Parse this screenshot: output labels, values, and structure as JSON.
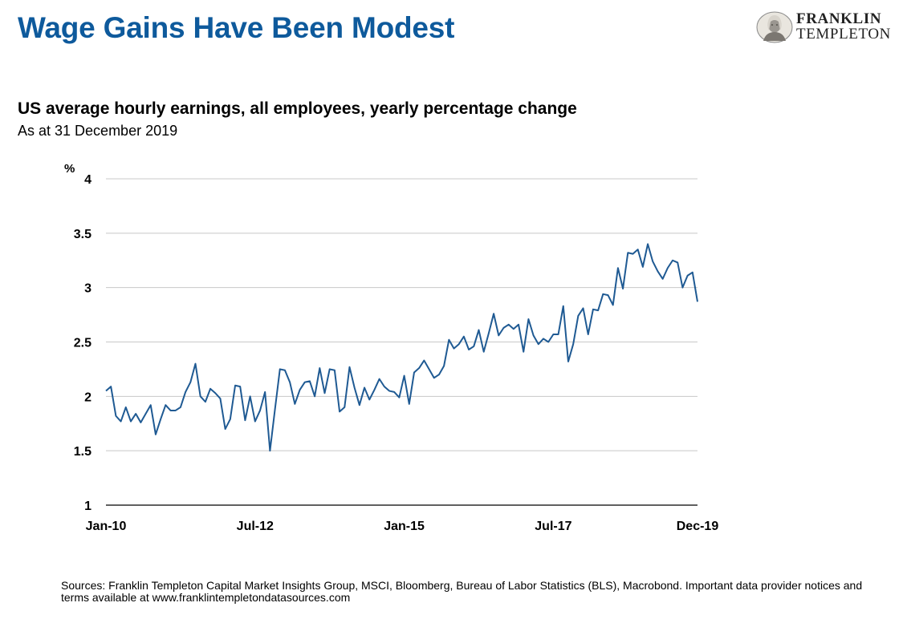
{
  "header": {
    "title": "Wage Gains Have Been Modest",
    "logo_line1": "FRANKLIN",
    "logo_line2": "TEMPLETON",
    "logo_icon": "franklin-portrait-icon"
  },
  "subtitle": "US average hourly earnings, all employees, yearly percentage change",
  "as_of": "As at 31 December 2019",
  "footer": {
    "sources": "Sources: Franklin Templeton Capital Market Insights Group, MSCI, Bloomberg, Bureau of Labor Statistics (BLS), Macrobond. Important data provider notices and terms available at www.franklintempletondatasources.com"
  },
  "chart_data": {
    "type": "line",
    "ylabel": "%",
    "ylim": [
      1,
      4
    ],
    "yticks": [
      "1",
      "1.5",
      "2",
      "2.5",
      "3",
      "3.5",
      "4"
    ],
    "xticks": [
      {
        "label": "Jan-10",
        "index": 0
      },
      {
        "label": "Jul-12",
        "index": 30
      },
      {
        "label": "Jan-15",
        "index": 60
      },
      {
        "label": "Jul-17",
        "index": 90
      },
      {
        "label": "Dec-19",
        "index": 119
      }
    ],
    "grid": true,
    "line_color": "#1f5a93",
    "series": [
      {
        "values": [
          2.05,
          2.09,
          1.82,
          1.77,
          1.9,
          1.77,
          1.84,
          1.76,
          1.84,
          1.92,
          1.65,
          1.79,
          1.92,
          1.87,
          1.87,
          1.9,
          2.04,
          2.13,
          2.3,
          2.0,
          1.95,
          2.07,
          2.03,
          1.98,
          1.7,
          1.79,
          2.1,
          2.09,
          1.78,
          2.0,
          1.77,
          1.87,
          2.04,
          1.5,
          1.88,
          2.25,
          2.24,
          2.13,
          1.93,
          2.06,
          2.13,
          2.14,
          2.0,
          2.26,
          2.03,
          2.25,
          2.24,
          1.86,
          1.9,
          2.27,
          2.08,
          1.92,
          2.08,
          1.97,
          2.06,
          2.16,
          2.09,
          2.05,
          2.04,
          1.99,
          2.19,
          1.93,
          2.22,
          2.26,
          2.33,
          2.25,
          2.17,
          2.2,
          2.28,
          2.52,
          2.44,
          2.48,
          2.55,
          2.43,
          2.46,
          2.61,
          2.41,
          2.58,
          2.76,
          2.56,
          2.63,
          2.66,
          2.62,
          2.66,
          2.41,
          2.71,
          2.56,
          2.48,
          2.53,
          2.5,
          2.57,
          2.57,
          2.83,
          2.32,
          2.48,
          2.74,
          2.81,
          2.57,
          2.8,
          2.79,
          2.94,
          2.93,
          2.84,
          3.18,
          2.99,
          3.32,
          3.31,
          3.35,
          3.19,
          3.4,
          3.24,
          3.15,
          3.08,
          3.18,
          3.25,
          3.23,
          3.0,
          3.11,
          3.14,
          2.87
        ]
      }
    ]
  }
}
